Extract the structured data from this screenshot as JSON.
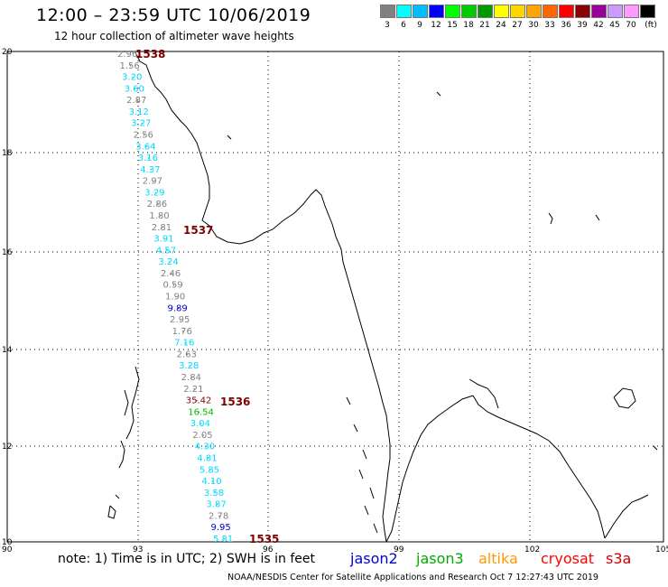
{
  "header": {
    "title": "12:00 – 23:59 UTC 10/06/2019",
    "subtitle": "12 hour collection of altimeter wave heights"
  },
  "legend": {
    "unit": "(ft)",
    "bins": [
      {
        "label": "3",
        "color": "#808080"
      },
      {
        "label": "6",
        "color": "#00ffff"
      },
      {
        "label": "9",
        "color": "#00bfff"
      },
      {
        "label": "12",
        "color": "#0000ff"
      },
      {
        "label": "15",
        "color": "#00ff00"
      },
      {
        "label": "18",
        "color": "#00cc00"
      },
      {
        "label": "21",
        "color": "#009900"
      },
      {
        "label": "24",
        "color": "#ffff00"
      },
      {
        "label": "27",
        "color": "#ffd700"
      },
      {
        "label": "30",
        "color": "#ffa500"
      },
      {
        "label": "33",
        "color": "#ff6600"
      },
      {
        "label": "36",
        "color": "#ff0000"
      },
      {
        "label": "39",
        "color": "#8b0000"
      },
      {
        "label": "42",
        "color": "#990099"
      },
      {
        "label": "45",
        "color": "#cc99ff"
      },
      {
        "label": "70",
        "color": "#ff99ff"
      },
      {
        "label": "",
        "color": "#000000"
      }
    ]
  },
  "axes": {
    "lon_labels": [
      "90",
      "93",
      "96",
      "99",
      "102",
      "105"
    ],
    "lat_labels": [
      "20",
      "18",
      "16",
      "14",
      "12",
      "10"
    ]
  },
  "pass_times": [
    "1538",
    "1537",
    "1536",
    "1535"
  ],
  "wave_heights": [
    {
      "v": "2.96",
      "c": "#808080"
    },
    {
      "v": "1.56",
      "c": "#808080"
    },
    {
      "v": "3.20",
      "c": "#00d8ff"
    },
    {
      "v": "3.60",
      "c": "#00d8ff"
    },
    {
      "v": "2.87",
      "c": "#808080"
    },
    {
      "v": "3.12",
      "c": "#00d8ff"
    },
    {
      "v": "3.27",
      "c": "#00d8ff"
    },
    {
      "v": "2.56",
      "c": "#808080"
    },
    {
      "v": "3.64",
      "c": "#00d8ff"
    },
    {
      "v": "3.16",
      "c": "#00d8ff"
    },
    {
      "v": "4.37",
      "c": "#00d8ff"
    },
    {
      "v": "2.97",
      "c": "#808080"
    },
    {
      "v": "3.29",
      "c": "#00d8ff"
    },
    {
      "v": "2.86",
      "c": "#808080"
    },
    {
      "v": "1.80",
      "c": "#808080"
    },
    {
      "v": "2.81",
      "c": "#808080"
    },
    {
      "v": "3.91",
      "c": "#00d8ff"
    },
    {
      "v": "4.57",
      "c": "#00d8ff"
    },
    {
      "v": "3.24",
      "c": "#00d8ff"
    },
    {
      "v": "2.46",
      "c": "#808080"
    },
    {
      "v": "0.59",
      "c": "#808080"
    },
    {
      "v": "1.90",
      "c": "#808080"
    },
    {
      "v": "9.89",
      "c": "#0000cc"
    },
    {
      "v": "2.95",
      "c": "#808080"
    },
    {
      "v": "1.76",
      "c": "#808080"
    },
    {
      "v": "7.16",
      "c": "#00d8ff"
    },
    {
      "v": "2.63",
      "c": "#808080"
    },
    {
      "v": "3.28",
      "c": "#00d8ff"
    },
    {
      "v": "2.84",
      "c": "#808080"
    },
    {
      "v": "2.21",
      "c": "#808080"
    },
    {
      "v": "35.42",
      "c": "#8b0000"
    },
    {
      "v": "16.54",
      "c": "#00bb00"
    },
    {
      "v": "3.04",
      "c": "#00d8ff"
    },
    {
      "v": "2.05",
      "c": "#808080"
    },
    {
      "v": "4.30",
      "c": "#00d8ff"
    },
    {
      "v": "4.81",
      "c": "#00d8ff"
    },
    {
      "v": "5.85",
      "c": "#00d8ff"
    },
    {
      "v": "4.10",
      "c": "#00d8ff"
    },
    {
      "v": "3.58",
      "c": "#00d8ff"
    },
    {
      "v": "3.87",
      "c": "#00d8ff"
    },
    {
      "v": "2.78",
      "c": "#808080"
    },
    {
      "v": "9.95",
      "c": "#0000cc"
    },
    {
      "v": "5.81",
      "c": "#00d8ff"
    }
  ],
  "footer": {
    "note": "note: 1) Time is in UTC; 2) SWH is in feet",
    "satellites": [
      {
        "name": "jason2",
        "color": "#0000dd"
      },
      {
        "name": "jason3",
        "color": "#00aa00"
      },
      {
        "name": "altika",
        "color": "#ff9900"
      },
      {
        "name": "cryosat",
        "color": "#ff0000"
      },
      {
        "name": "s3a",
        "color": "#cc0000"
      }
    ],
    "credit": "NOAA/NESDIS Center for Satellite Applications and Research   Oct  7 12:27:43 UTC 2019"
  }
}
